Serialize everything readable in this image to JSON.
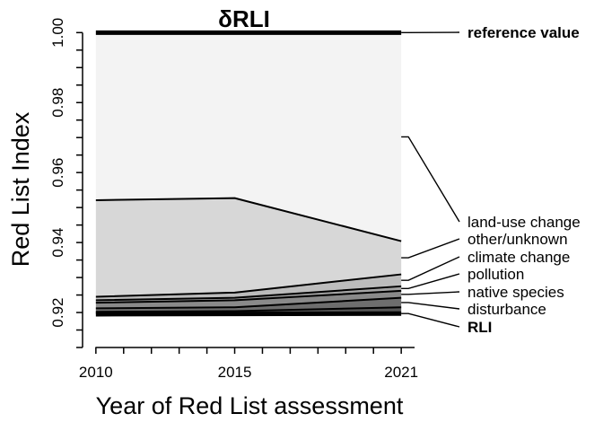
{
  "chart_data": {
    "type": "area",
    "title": "δRLI",
    "xlabel": "Year of Red List assessment",
    "ylabel": "Red List Index",
    "xlim": [
      2010,
      2021
    ],
    "ylim": [
      0.91,
      1.0
    ],
    "x_ticks": [
      2010,
      2015,
      2021
    ],
    "y_ticks": [
      0.92,
      0.94,
      0.96,
      0.98,
      1.0
    ],
    "y_tick_labels": [
      "0.92",
      "0.94",
      "0.96",
      "0.98",
      "1.00"
    ],
    "x": [
      2010,
      2015,
      2021
    ],
    "reference": {
      "name": "reference value",
      "values": [
        1.0,
        1.0,
        1.0
      ],
      "bold": true,
      "fill": "#f3f3f3"
    },
    "series": [
      {
        "name": "land-use change",
        "values": [
          0.9521,
          0.9527,
          0.9404
        ],
        "fill": "#d7d7d7"
      },
      {
        "name": "other/unknown",
        "values": [
          0.9245,
          0.9257,
          0.9309
        ],
        "fill": "#bcbcbc"
      },
      {
        "name": "climate change",
        "values": [
          0.9235,
          0.9242,
          0.9275
        ],
        "fill": "#a3a3a3"
      },
      {
        "name": "pollution",
        "values": [
          0.9228,
          0.9235,
          0.9262
        ],
        "fill": "#8a8a8a"
      },
      {
        "name": "native species",
        "values": [
          0.9212,
          0.9215,
          0.9242
        ],
        "fill": "#6e6e6e"
      },
      {
        "name": "disturbance",
        "values": [
          0.9202,
          0.9204,
          0.9215
        ],
        "fill": "#555555"
      },
      {
        "name": "RLI",
        "values": [
          0.9195,
          0.9196,
          0.9197
        ],
        "bold": true,
        "fill": "#ffffff"
      }
    ]
  }
}
